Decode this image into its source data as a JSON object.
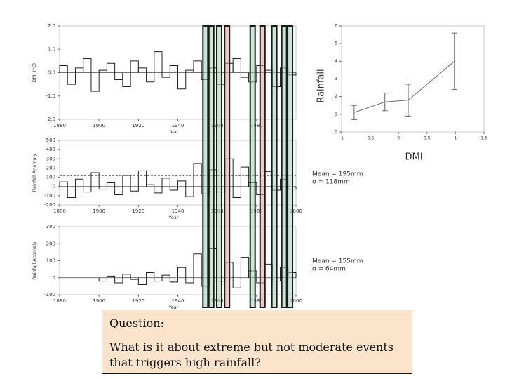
{
  "chart_data": [
    {
      "type": "step",
      "y_label": "DMI (°C)",
      "x_label": "Year",
      "x": [
        1880,
        1884,
        1888,
        1892,
        1896,
        1900,
        1904,
        1908,
        1912,
        1916,
        1920,
        1924,
        1928,
        1932,
        1936,
        1940,
        1944,
        1948,
        1952,
        1956,
        1960,
        1964,
        1968,
        1972,
        1976,
        1980,
        1984,
        1988,
        1992,
        1996
      ],
      "values": [
        0.3,
        -0.5,
        0.2,
        0.6,
        -0.8,
        0.1,
        0.4,
        -0.3,
        -0.6,
        0.5,
        0.2,
        -0.4,
        0.9,
        -0.2,
        0.3,
        -0.7,
        0.1,
        0.5,
        -0.3,
        0.2,
        -0.5,
        0.4,
        0.6,
        -0.2,
        -0.4,
        0.3,
        0.1,
        -0.6,
        0.2,
        -0.1
      ],
      "color": "#222222",
      "xlim": [
        1880,
        2000
      ],
      "ylim": [
        -2,
        2
      ],
      "xticks": [
        1880,
        1900,
        1920,
        1940,
        1960,
        1980
      ],
      "yticks": [
        {
          "value": 2,
          "label": "2.0"
        },
        {
          "value": 1,
          "label": "1.0"
        },
        {
          "value": 0,
          "label": "0.0"
        },
        {
          "value": -1,
          "label": "-1.0"
        },
        {
          "value": -2,
          "label": "-2.0"
        }
      ]
    },
    {
      "type": "step",
      "y_label": "Rainfall Anomaly",
      "x_label": "Year",
      "x": [
        1880,
        1884,
        1888,
        1892,
        1896,
        1900,
        1904,
        1908,
        1912,
        1916,
        1920,
        1924,
        1928,
        1932,
        1936,
        1940,
        1944,
        1948,
        1952,
        1956,
        1960,
        1964,
        1968,
        1972,
        1976,
        1980,
        1984,
        1988,
        1992,
        1996
      ],
      "values": [
        50,
        -120,
        80,
        -60,
        150,
        -30,
        40,
        -90,
        120,
        -50,
        170,
        20,
        -70,
        90,
        -40,
        60,
        -110,
        250,
        -80,
        180,
        -60,
        300,
        -120,
        210,
        40,
        -90,
        160,
        -40,
        80,
        -30
      ],
      "color": "#222222",
      "xlim": [
        1880,
        2000
      ],
      "ylim": [
        -200,
        500
      ],
      "xticks": [
        1880,
        1900,
        1920,
        1940,
        1960,
        1980,
        2000
      ],
      "yticks": [
        500,
        400,
        300,
        200,
        100,
        0,
        -100,
        -200
      ],
      "threshold_line": 118,
      "annotations": [
        "Mean = 195mm",
        "σ = 118mm"
      ]
    },
    {
      "type": "step",
      "y_label": "Rainfall Anomaly",
      "x_label": "Year",
      "x": [
        1900,
        1904,
        1908,
        1912,
        1916,
        1920,
        1924,
        1928,
        1932,
        1936,
        1940,
        1944,
        1948,
        1952,
        1956,
        1960,
        1964,
        1968,
        1972,
        1976,
        1980,
        1984,
        1988,
        1992,
        1996
      ],
      "values": [
        -20,
        10,
        -30,
        20,
        -10,
        -40,
        30,
        -20,
        15,
        -25,
        60,
        -30,
        140,
        -50,
        170,
        -20,
        90,
        -60,
        120,
        40,
        -30,
        80,
        -20,
        60,
        30
      ],
      "color": "#222222",
      "xlim": [
        1880,
        2000
      ],
      "ylim": [
        -100,
        300
      ],
      "xticks": [
        1880,
        1900,
        1920,
        1940,
        1960,
        1980,
        2000
      ],
      "yticks": [
        300,
        200,
        100,
        0,
        -100
      ],
      "annotations": [
        "Mean = 155mm",
        "σ = 64mm"
      ]
    },
    {
      "type": "line",
      "y_label": "Rainfall",
      "x_label": "DMI",
      "x": [
        -0.78,
        -0.24,
        0.17,
        0.98
      ],
      "values": [
        1.1,
        1.7,
        1.8,
        4.0
      ],
      "errors": [
        0.4,
        0.5,
        0.9,
        1.6
      ],
      "color": "#666666",
      "xlim": [
        -1,
        1.5
      ],
      "ylim": [
        0,
        6
      ],
      "xticks": [
        -1,
        -0.5,
        0,
        0.5,
        1,
        1.5
      ],
      "yticks": [
        0,
        1,
        2,
        3,
        4,
        5,
        6
      ]
    }
  ],
  "events": {
    "years": [
      1954,
      1957,
      1961,
      1965,
      1978,
      1983,
      1989,
      1994,
      1997
    ],
    "colors": [
      "#9fd3b0",
      "#9fd3b0",
      "#9fd3b0",
      "#e89a9a",
      "#9fd3b0",
      "#e89a9a",
      "#9fd3b0",
      "#9fd3b0",
      "#9fd3b0"
    ]
  },
  "question": {
    "title": "Question:",
    "text": "What is it about extreme but not moderate events that triggers high rainfall?"
  }
}
